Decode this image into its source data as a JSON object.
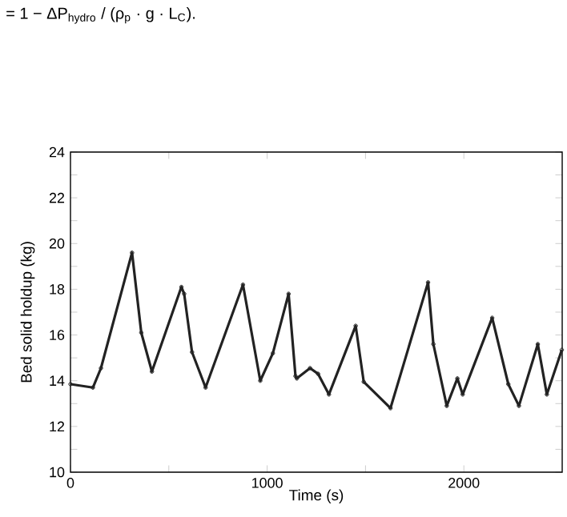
{
  "chart_data": {
    "type": "line",
    "xlabel": "Time (s)",
    "ylabel": "Bed solid holdup (kg)",
    "annotations": [
      "= 1 − ΔP$_{hydro}$ / (ρ$_{p}$ · g · L$_{C}$)."
    ],
    "xlim": [
      0,
      2500
    ],
    "ylim": [
      10,
      24
    ],
    "xticks": [
      0,
      {
        "value": 500,
        "label": null
      },
      1000,
      {
        "value": 1500,
        "label": null
      },
      2000
    ],
    "yticks": [
      10,
      {
        "value": 11,
        "label": null
      },
      12,
      {
        "value": 13,
        "label": null
      },
      14,
      {
        "value": 15,
        "label": null
      },
      16,
      {
        "value": 17,
        "label": null
      },
      18,
      {
        "value": 19,
        "label": null
      },
      20,
      {
        "value": 21,
        "label": null
      },
      22,
      {
        "value": 23,
        "label": null
      },
      24
    ],
    "marker": "circle",
    "line_style": "solid",
    "series": [
      {
        "color": "#222222",
        "x": [
          0,
          114,
          155,
          313,
          360,
          414,
          564,
          578,
          618,
          687,
          877,
          965,
          1029,
          1109,
          1144,
          1151,
          1218,
          1259,
          1314,
          1450,
          1491,
          1627,
          1818,
          1845,
          1913,
          1967,
          1994,
          2144,
          2226,
          2280,
          2376,
          2422,
          2498
        ],
        "values": [
          13.85,
          13.7,
          14.55,
          19.6,
          16.1,
          14.4,
          18.1,
          17.8,
          15.25,
          13.7,
          18.2,
          14.0,
          15.2,
          17.8,
          14.2,
          14.1,
          14.55,
          14.3,
          13.4,
          16.4,
          13.95,
          12.8,
          18.3,
          15.6,
          12.9,
          14.1,
          13.4,
          16.75,
          13.85,
          12.9,
          15.6,
          13.4,
          15.35
        ]
      }
    ]
  }
}
